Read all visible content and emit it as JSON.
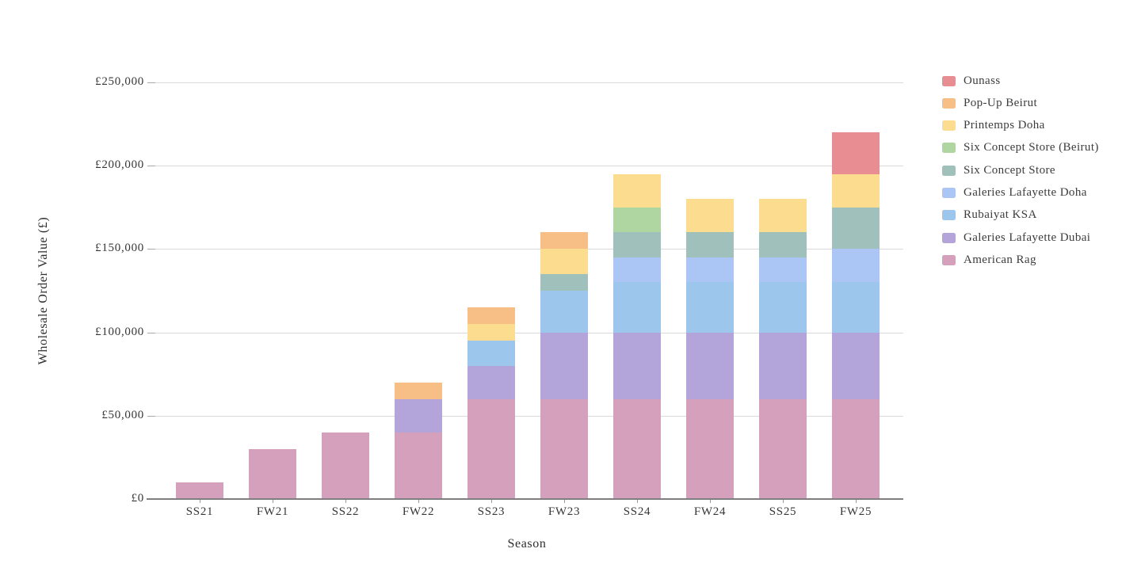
{
  "chart_data": {
    "type": "bar",
    "stacked": true,
    "title": "",
    "xlabel": "Season",
    "ylabel": "Wholesale Order Value (£)",
    "categories": [
      "SS21",
      "FW21",
      "SS22",
      "FW22",
      "SS23",
      "FW23",
      "SS24",
      "FW24",
      "SS25",
      "FW25"
    ],
    "ylim": [
      0,
      250000
    ],
    "y_tick_interval": 50000,
    "y_tick_labels": [
      "£0",
      "£50,000",
      "£100,000",
      "£150,000",
      "£200,000",
      "£250,000"
    ],
    "grid": true,
    "legend_position": "right",
    "series": [
      {
        "name": "Ounass",
        "color": "#e88e93",
        "values": [
          0,
          0,
          0,
          0,
          0,
          0,
          0,
          0,
          0,
          25000
        ]
      },
      {
        "name": "Pop-Up Beirut",
        "color": "#f7be86",
        "values": [
          0,
          0,
          0,
          10000,
          10000,
          10000,
          0,
          0,
          0,
          0
        ]
      },
      {
        "name": "Printemps Doha",
        "color": "#fcdd90",
        "values": [
          0,
          0,
          0,
          0,
          10000,
          15000,
          20000,
          20000,
          20000,
          20000
        ]
      },
      {
        "name": "Six Concept Store (Beirut)",
        "color": "#afd5a0",
        "values": [
          0,
          0,
          0,
          0,
          0,
          0,
          15000,
          0,
          0,
          0
        ]
      },
      {
        "name": "Six Concept Store",
        "color": "#a0c0bb",
        "values": [
          0,
          0,
          0,
          0,
          0,
          10000,
          15000,
          15000,
          15000,
          25000
        ]
      },
      {
        "name": "Galeries Lafayette Doha",
        "color": "#abc6f5",
        "values": [
          0,
          0,
          0,
          0,
          0,
          0,
          15000,
          15000,
          15000,
          20000
        ]
      },
      {
        "name": "Rubaiyat KSA",
        "color": "#9cc6ec",
        "values": [
          0,
          0,
          0,
          0,
          15000,
          25000,
          30000,
          30000,
          30000,
          30000
        ]
      },
      {
        "name": "Galeries Lafayette Dubai",
        "color": "#b3a4da",
        "values": [
          0,
          0,
          0,
          20000,
          20000,
          40000,
          40000,
          40000,
          40000,
          40000
        ]
      },
      {
        "name": "American Rag",
        "color": "#d4a0bb",
        "values": [
          10000,
          30000,
          40000,
          40000,
          60000,
          60000,
          60000,
          60000,
          60000,
          60000
        ]
      }
    ],
    "totals": [
      10000,
      30000,
      40000,
      70000,
      115000,
      160000,
      195000,
      180000,
      180000,
      220000
    ]
  }
}
